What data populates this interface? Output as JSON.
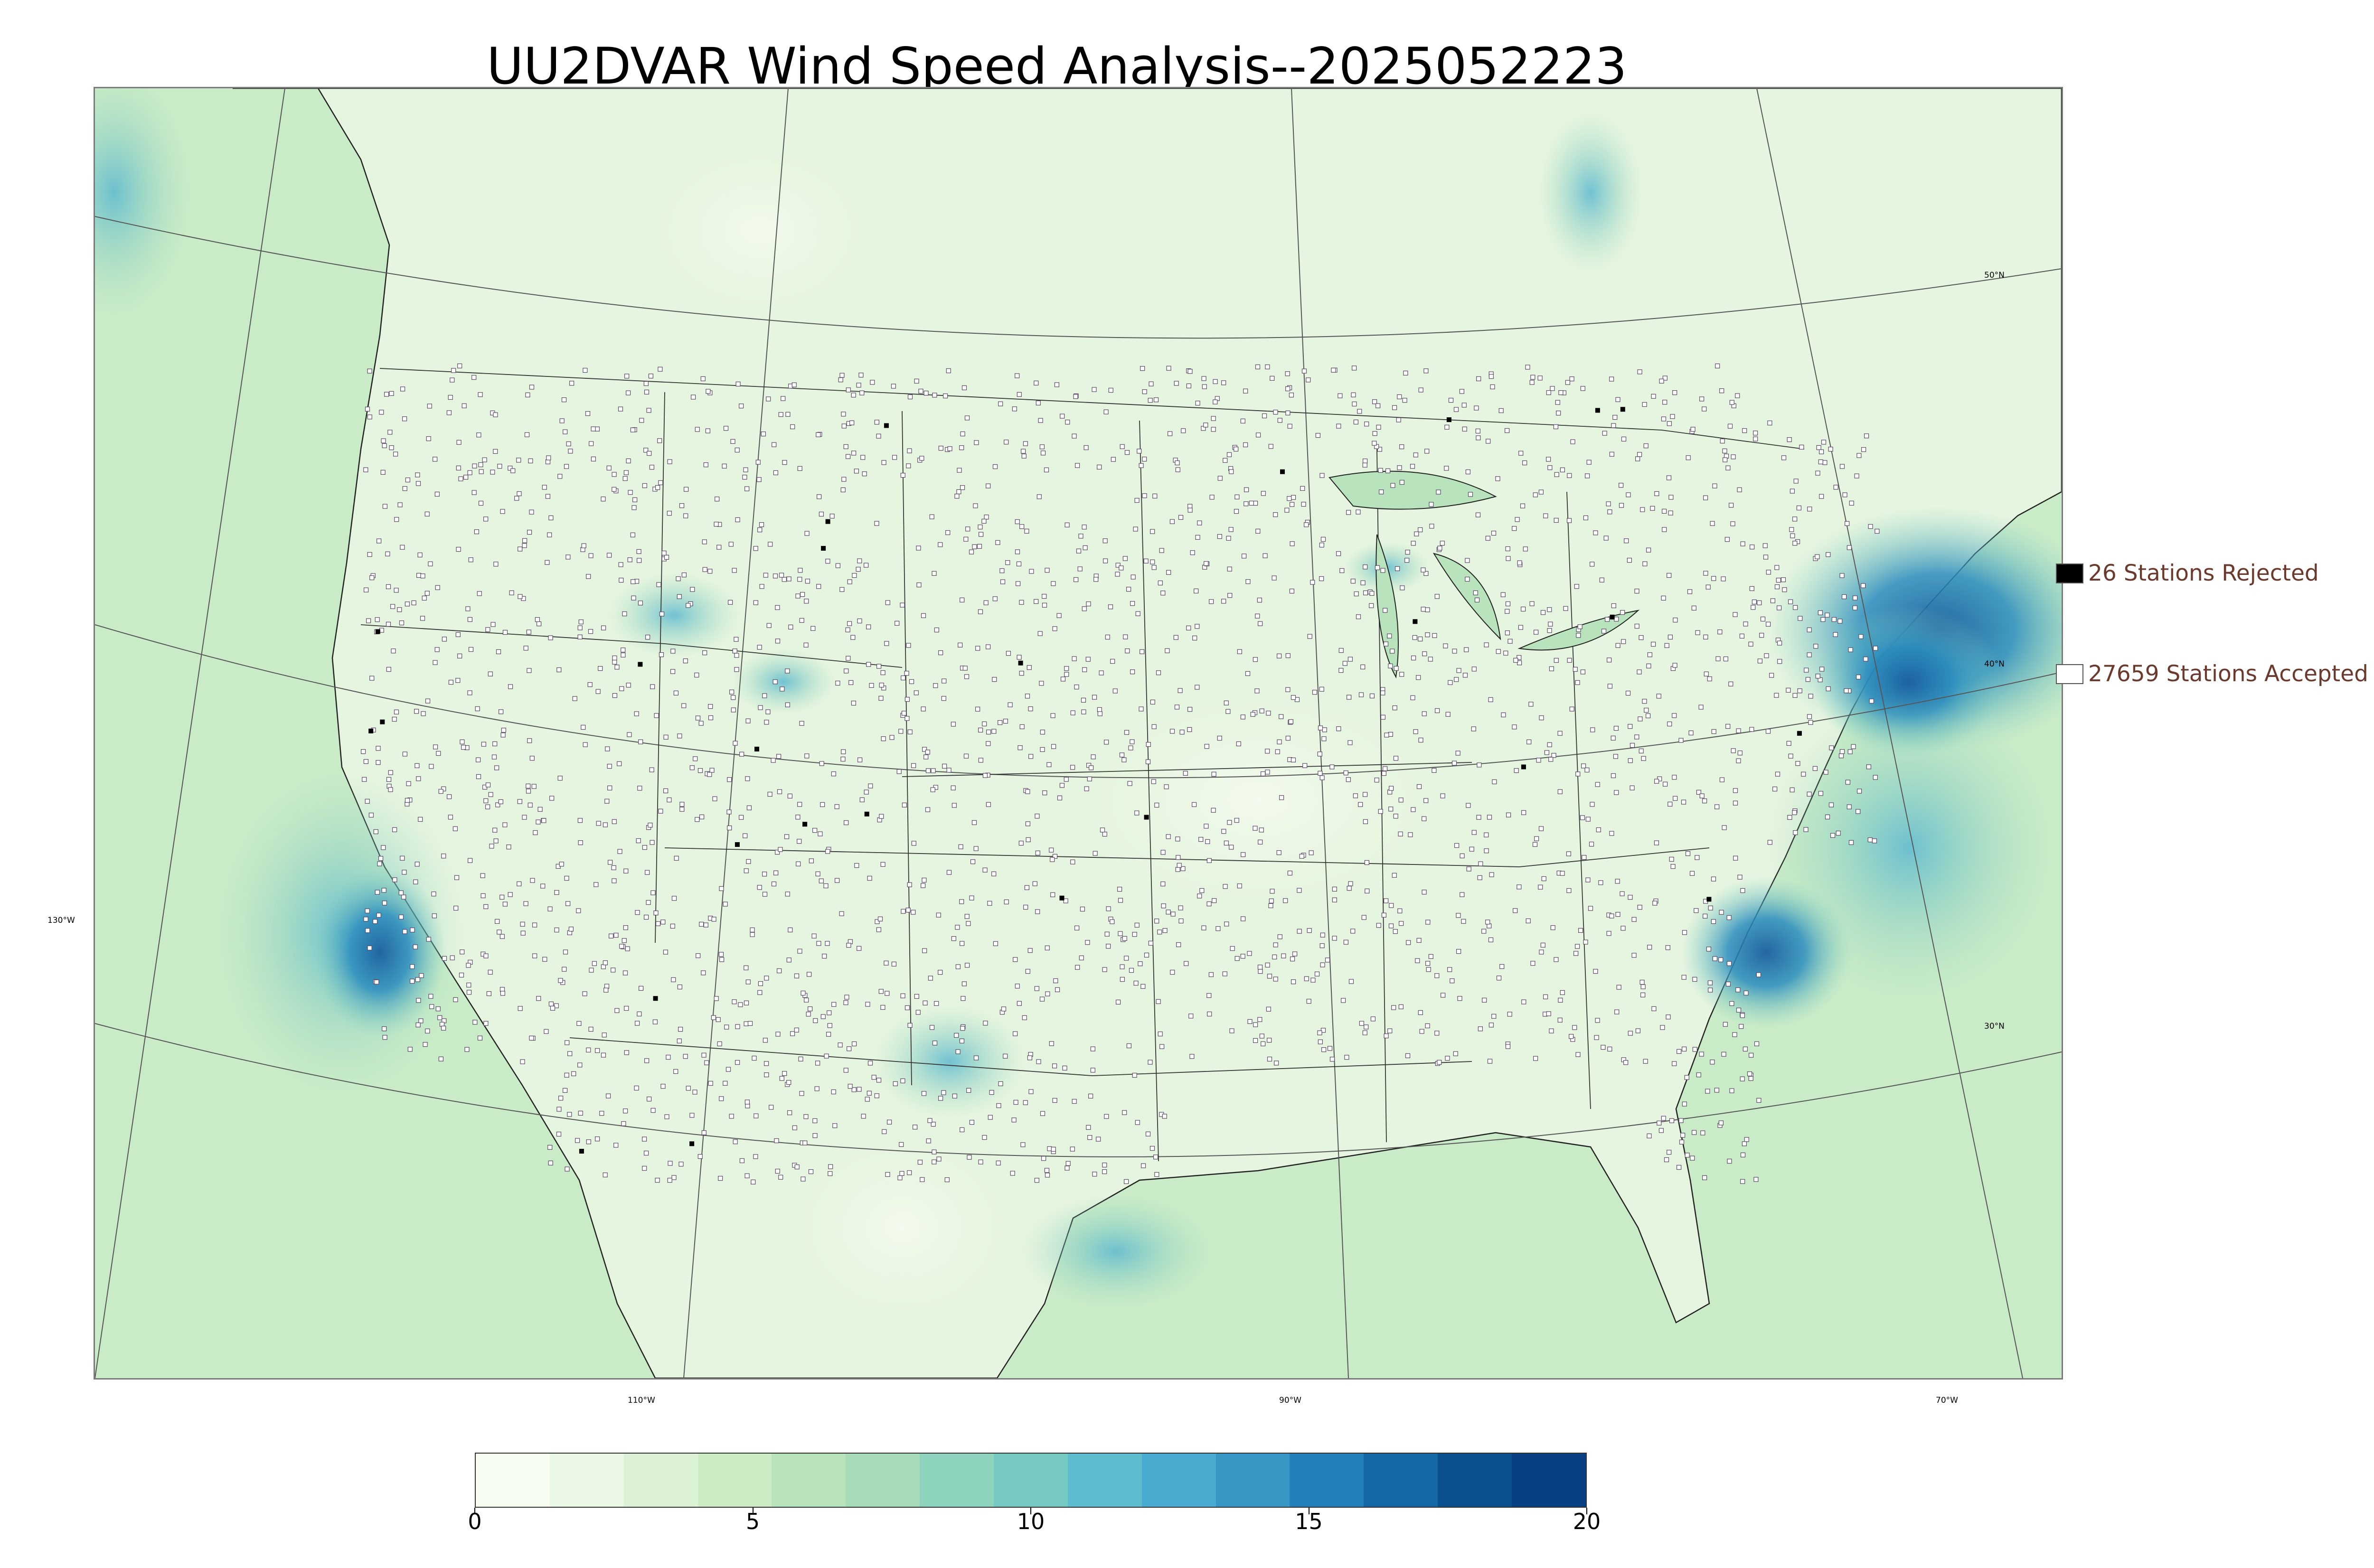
{
  "title": "UU2DVAR Wind Speed Analysis--2025052223",
  "legend": {
    "rejected": {
      "label": "26 Stations Rejected",
      "fill": "#000000"
    },
    "accepted": {
      "label": "27659 Stations Accepted",
      "fill": "#ffffff"
    }
  },
  "grid_labels": {
    "lat_50": "50°N",
    "lat_40": "40°N",
    "lat_30": "30°N",
    "lon_130": "130°W",
    "lon_110": "110°W",
    "lon_90": "90°W",
    "lon_70": "70°W"
  },
  "colorbar": {
    "ticks": [
      "0",
      "5",
      "10",
      "15",
      "20"
    ],
    "colors": [
      "#f7fcf0",
      "#eaf7e4",
      "#dcf2d6",
      "#cdebc5",
      "#b9e3bd",
      "#a6dcb8",
      "#8dd3bd",
      "#77cac4",
      "#5fbcce",
      "#4aabd0",
      "#3a97c5",
      "#2580ba",
      "#1667a6",
      "#0a4f8e",
      "#084081"
    ]
  },
  "map": {
    "ocean_color": "#c9ebc8",
    "land_color": "#e6f5df",
    "high_wind_color": "#2b8cbe"
  }
}
